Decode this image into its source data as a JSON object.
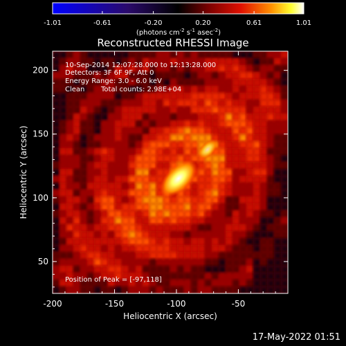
{
  "chart_data": {
    "type": "heatmap",
    "title": "Reconstructed RHESSI Image",
    "xlabel": "Heliocentric X (arcsec)",
    "ylabel": "Heliocentric Y (arcsec)",
    "xlim": [
      -200,
      -10
    ],
    "ylim": [
      25,
      215
    ],
    "x_ticks": [
      "-200",
      "-150",
      "-100",
      "-50"
    ],
    "x_tick_values": [
      -200,
      -150,
      -100,
      -50
    ],
    "y_ticks": [
      "50",
      "100",
      "150",
      "200"
    ],
    "y_tick_values": [
      50,
      100,
      150,
      200
    ],
    "colorbar": {
      "min": -1.01,
      "max": 1.01,
      "ticks": [
        "-1.01",
        "-0.61",
        "-0.20",
        "0.20",
        "0.61",
        "1.01"
      ],
      "tick_values": [
        -1.01,
        -0.61,
        -0.2,
        0.2,
        0.61,
        1.01
      ],
      "units_text": "(photons cm",
      "units_exp1": "-2",
      "units_mid": " s",
      "units_exp2": "-1",
      "units_tail": " asec",
      "units_exp3": "-2",
      "units_end": ")"
    },
    "annotations": {
      "time_range": "10-Sep-2014 12:07:28.000 to 12:13:28.000",
      "detectors": "Detectors: 3F 6F 9F, Att 0",
      "energy_range": "Energy Range: 3.0 - 6.0 keV",
      "algorithm": "Clean",
      "total_counts": "Total counts: 2.98E+04",
      "peak_position": "Position of Peak = [-97,118]"
    },
    "peak": {
      "x": -97,
      "y": 118,
      "value": 1.01
    },
    "colors": {
      "negative": "#0000ff",
      "zero": "#000000",
      "positive_low": "#8b0000",
      "positive_mid": "#ff6000",
      "positive_high": "#ffffff"
    }
  },
  "footer": {
    "timestamp": "17-May-2022 01:51"
  }
}
